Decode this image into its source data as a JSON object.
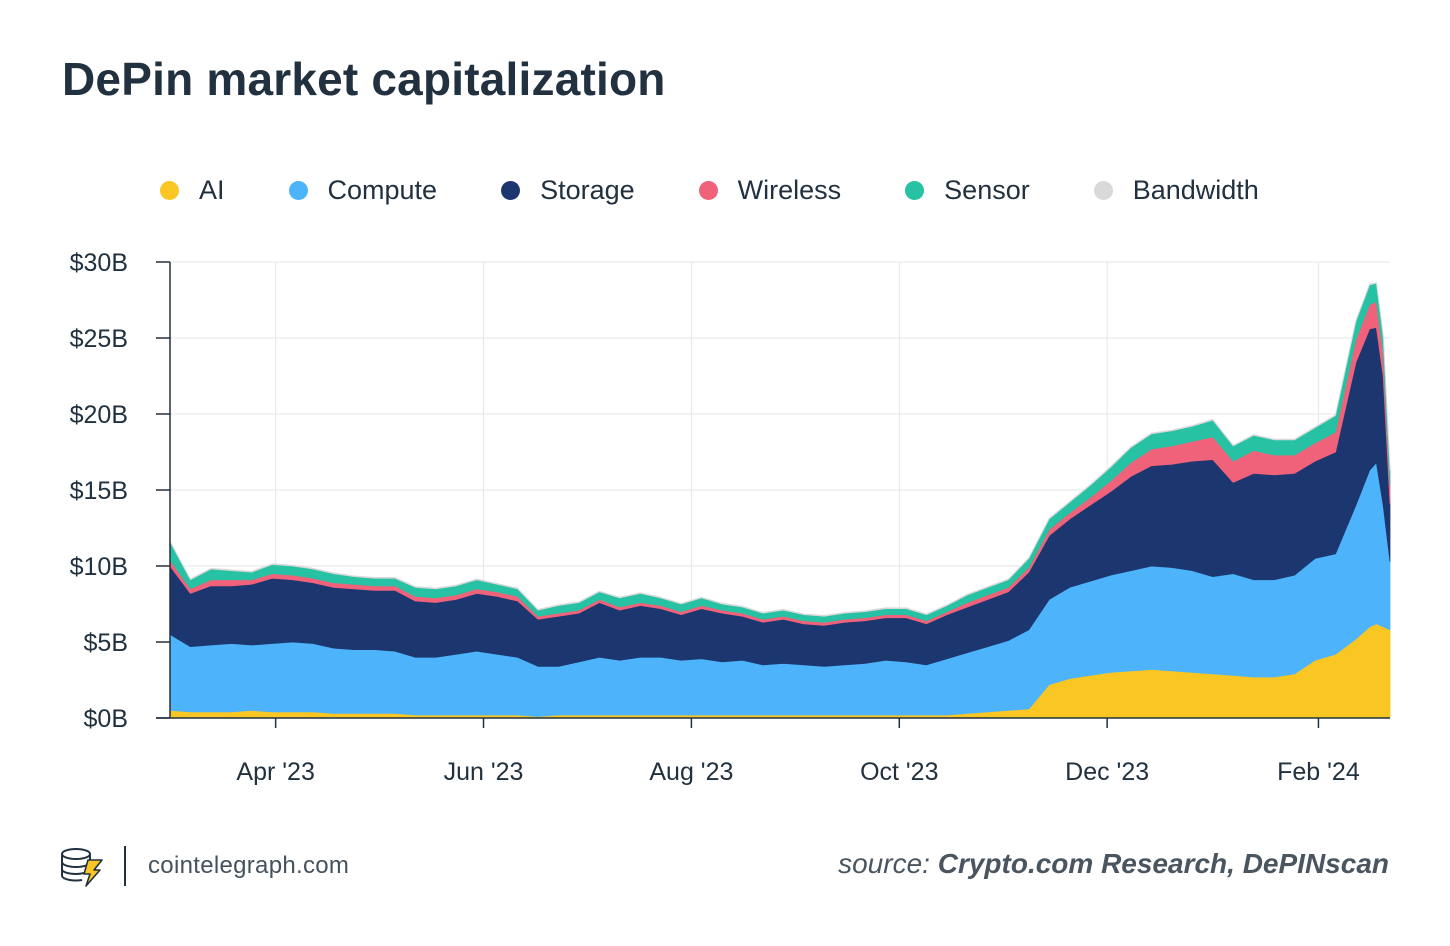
{
  "title": "DePin market capitalization",
  "legend": [
    {
      "label": "AI",
      "color": "#f9c623"
    },
    {
      "label": "Compute",
      "color": "#4db3fa"
    },
    {
      "label": "Storage",
      "color": "#1c3670"
    },
    {
      "label": "Wireless",
      "color": "#f0627a"
    },
    {
      "label": "Sensor",
      "color": "#27c1a3"
    },
    {
      "label": "Bandwidth",
      "color": "#d9d9d9"
    }
  ],
  "footer": {
    "brand": "cointelegraph.com",
    "source_prefix": "source:",
    "source_text": "Crypto.com Research, DePINscan"
  },
  "chart_data": {
    "type": "area",
    "stacked": true,
    "title": "DePin market capitalization",
    "ylabel": "",
    "xlabel": "",
    "ylim": [
      0,
      30
    ],
    "y_unit": "B USD",
    "y_ticks": [
      0,
      5,
      10,
      15,
      20,
      25,
      30
    ],
    "y_tick_labels": [
      "$0B",
      "$5B",
      "$10B",
      "$15B",
      "$20B",
      "$25B",
      "$30B"
    ],
    "x_ticks": [
      {
        "label": "Apr '23",
        "day": 31
      },
      {
        "label": "Jun '23",
        "day": 92
      },
      {
        "label": "Aug '23",
        "day": 153
      },
      {
        "label": "Oct '23",
        "day": 214
      },
      {
        "label": "Dec '23",
        "day": 275
      },
      {
        "label": "Feb '24",
        "day": 337
      }
    ],
    "x_range_days": [
      0,
      358
    ],
    "x_origin": "2023-03-01",
    "grid": true,
    "legend_position": "top",
    "x": [
      0,
      6,
      12,
      18,
      24,
      30,
      36,
      42,
      48,
      54,
      60,
      66,
      72,
      78,
      84,
      90,
      96,
      102,
      108,
      114,
      120,
      126,
      132,
      138,
      144,
      150,
      156,
      162,
      168,
      174,
      180,
      186,
      192,
      198,
      204,
      210,
      216,
      222,
      228,
      234,
      240,
      246,
      252,
      258,
      264,
      270,
      276,
      282,
      288,
      294,
      300,
      306,
      312,
      318,
      324,
      330,
      336,
      342,
      348,
      352,
      354,
      356,
      358
    ],
    "series": [
      {
        "name": "AI",
        "color": "#f9c623",
        "values": [
          0.5,
          0.4,
          0.4,
          0.4,
          0.5,
          0.4,
          0.4,
          0.4,
          0.3,
          0.3,
          0.3,
          0.3,
          0.2,
          0.2,
          0.2,
          0.2,
          0.2,
          0.2,
          0.1,
          0.2,
          0.2,
          0.2,
          0.2,
          0.2,
          0.2,
          0.2,
          0.2,
          0.2,
          0.2,
          0.2,
          0.2,
          0.2,
          0.2,
          0.2,
          0.2,
          0.2,
          0.2,
          0.2,
          0.2,
          0.3,
          0.4,
          0.5,
          0.6,
          2.2,
          2.6,
          2.8,
          3.0,
          3.1,
          3.2,
          3.1,
          3.0,
          2.9,
          2.8,
          2.7,
          2.7,
          2.9,
          3.8,
          4.2,
          5.2,
          6.0,
          6.2,
          6.0,
          5.8
        ]
      },
      {
        "name": "Compute",
        "color": "#4db3fa",
        "values": [
          5.0,
          4.3,
          4.4,
          4.5,
          4.3,
          4.5,
          4.6,
          4.5,
          4.3,
          4.2,
          4.2,
          4.1,
          3.8,
          3.8,
          4.0,
          4.2,
          4.0,
          3.8,
          3.3,
          3.2,
          3.5,
          3.8,
          3.6,
          3.8,
          3.8,
          3.6,
          3.7,
          3.5,
          3.6,
          3.3,
          3.4,
          3.3,
          3.2,
          3.3,
          3.4,
          3.6,
          3.5,
          3.3,
          3.7,
          4.0,
          4.3,
          4.6,
          5.2,
          5.6,
          6.0,
          6.2,
          6.4,
          6.6,
          6.8,
          6.8,
          6.7,
          6.4,
          6.7,
          6.4,
          6.4,
          6.5,
          6.7,
          6.6,
          8.8,
          10.3,
          10.6,
          8.0,
          4.5
        ]
      },
      {
        "name": "Storage",
        "color": "#1c3670",
        "values": [
          4.5,
          3.5,
          3.9,
          3.8,
          4.0,
          4.3,
          4.1,
          4.0,
          4.0,
          4.0,
          3.9,
          4.0,
          3.7,
          3.6,
          3.6,
          3.8,
          3.8,
          3.7,
          3.1,
          3.3,
          3.2,
          3.6,
          3.3,
          3.4,
          3.2,
          3.0,
          3.3,
          3.2,
          2.9,
          2.8,
          2.9,
          2.7,
          2.7,
          2.8,
          2.8,
          2.8,
          2.9,
          2.7,
          2.9,
          3.0,
          3.1,
          3.2,
          3.8,
          4.2,
          4.5,
          5.0,
          5.5,
          6.2,
          6.6,
          6.8,
          7.2,
          7.7,
          6.0,
          7.0,
          6.9,
          6.7,
          6.4,
          6.7,
          9.4,
          9.3,
          8.9,
          8.5,
          3.8
        ]
      },
      {
        "name": "Wireless",
        "color": "#f0627a",
        "values": [
          0.4,
          0.3,
          0.4,
          0.4,
          0.3,
          0.3,
          0.3,
          0.3,
          0.3,
          0.3,
          0.3,
          0.3,
          0.3,
          0.3,
          0.3,
          0.3,
          0.3,
          0.3,
          0.2,
          0.2,
          0.2,
          0.2,
          0.2,
          0.2,
          0.2,
          0.2,
          0.2,
          0.2,
          0.2,
          0.2,
          0.2,
          0.2,
          0.2,
          0.2,
          0.2,
          0.2,
          0.2,
          0.2,
          0.2,
          0.3,
          0.3,
          0.3,
          0.3,
          0.4,
          0.4,
          0.5,
          0.7,
          0.9,
          1.1,
          1.2,
          1.3,
          1.5,
          1.4,
          1.5,
          1.3,
          1.2,
          1.2,
          1.3,
          1.5,
          1.6,
          1.7,
          1.5,
          1.2
        ]
      },
      {
        "name": "Sensor",
        "color": "#27c1a3",
        "values": [
          1.2,
          0.6,
          0.7,
          0.6,
          0.5,
          0.6,
          0.6,
          0.6,
          0.6,
          0.5,
          0.5,
          0.5,
          0.6,
          0.6,
          0.6,
          0.6,
          0.5,
          0.5,
          0.4,
          0.5,
          0.5,
          0.5,
          0.6,
          0.6,
          0.5,
          0.5,
          0.5,
          0.4,
          0.4,
          0.4,
          0.4,
          0.4,
          0.4,
          0.4,
          0.4,
          0.4,
          0.4,
          0.4,
          0.4,
          0.5,
          0.5,
          0.5,
          0.6,
          0.7,
          0.7,
          0.8,
          0.9,
          1.0,
          1.0,
          1.0,
          1.0,
          1.1,
          1.0,
          1.0,
          1.0,
          1.0,
          1.0,
          1.1,
          1.2,
          1.3,
          1.2,
          1.1,
          1.0
        ]
      },
      {
        "name": "Bandwidth",
        "color": "#d9d9d9",
        "values": [
          0.05,
          0.05,
          0.05,
          0.05,
          0.05,
          0.05,
          0.05,
          0.05,
          0.05,
          0.05,
          0.05,
          0.05,
          0.05,
          0.05,
          0.05,
          0.05,
          0.05,
          0.05,
          0.05,
          0.05,
          0.05,
          0.05,
          0.05,
          0.05,
          0.05,
          0.05,
          0.05,
          0.05,
          0.05,
          0.05,
          0.05,
          0.05,
          0.05,
          0.05,
          0.05,
          0.05,
          0.05,
          0.05,
          0.05,
          0.05,
          0.05,
          0.05,
          0.05,
          0.05,
          0.05,
          0.05,
          0.05,
          0.05,
          0.05,
          0.05,
          0.05,
          0.05,
          0.05,
          0.05,
          0.05,
          0.05,
          0.05,
          0.05,
          0.05,
          0.05,
          0.05,
          0.05,
          0.05
        ]
      }
    ]
  }
}
